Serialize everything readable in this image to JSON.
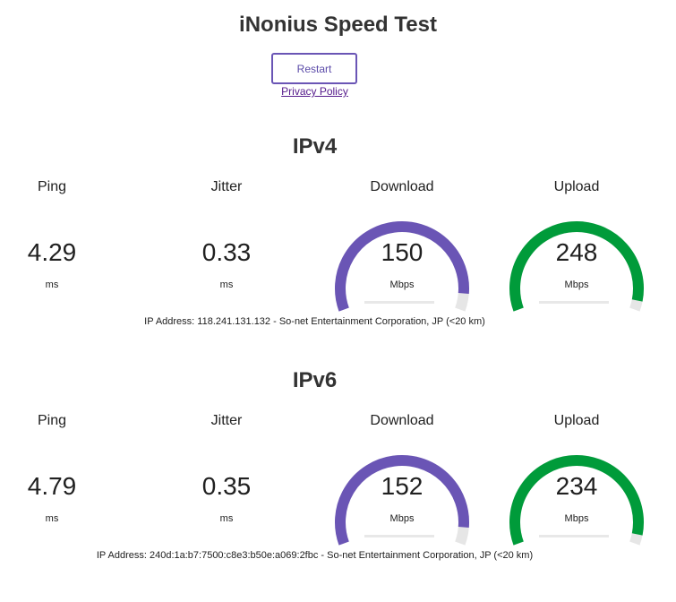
{
  "header": {
    "title": "iNonius Speed Test",
    "restart_label": "Restart",
    "privacy_label": "Privacy Policy"
  },
  "colors": {
    "download": "#6a55b5",
    "upload": "#009b3a",
    "track": "#e6e6e6"
  },
  "sections": [
    {
      "title": "IPv4",
      "ping": {
        "label": "Ping",
        "value": "4.29",
        "unit": "ms"
      },
      "jitter": {
        "label": "Jitter",
        "value": "0.33",
        "unit": "ms"
      },
      "download": {
        "label": "Download",
        "value": "150",
        "unit": "Mbps",
        "fill": 0.93
      },
      "upload": {
        "label": "Upload",
        "value": "248",
        "unit": "Mbps",
        "fill": 0.96
      },
      "ip_text": "IP Address: 118.241.131.132 - So-net Entertainment Corporation, JP (<20 km)"
    },
    {
      "title": "IPv6",
      "ping": {
        "label": "Ping",
        "value": "4.79",
        "unit": "ms"
      },
      "jitter": {
        "label": "Jitter",
        "value": "0.35",
        "unit": "ms"
      },
      "download": {
        "label": "Download",
        "value": "152",
        "unit": "Mbps",
        "fill": 0.93
      },
      "upload": {
        "label": "Upload",
        "value": "234",
        "unit": "Mbps",
        "fill": 0.96
      },
      "ip_text": "IP Address: 240d:1a:b7:7500:c8e3:b50e:a069:2fbc - So-net Entertainment Corporation, JP (<20 km)"
    }
  ]
}
